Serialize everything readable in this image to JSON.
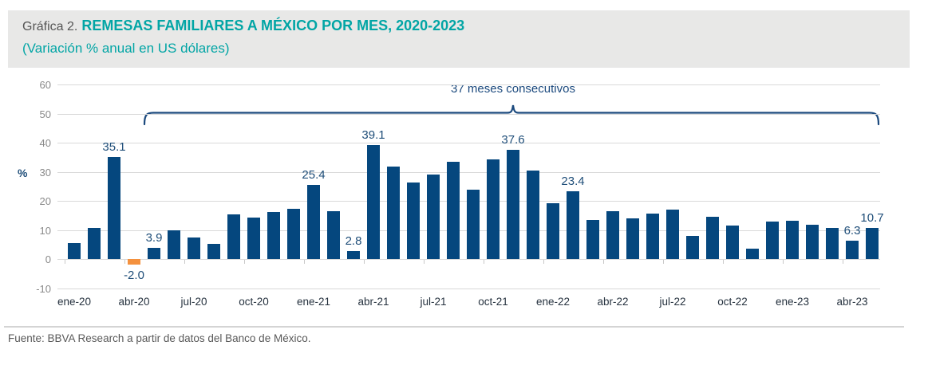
{
  "header": {
    "prefix": "Gráfica 2.",
    "title": "REMESAS FAMILIARES A MÉXICO POR MES, 2020-2023",
    "subtitle": "(Variación % anual en US dólares)"
  },
  "footer": {
    "source": "Fuente: BBVA Research a partir de datos del Banco de México."
  },
  "chart_data": {
    "type": "bar",
    "title": "REMESAS FAMILIARES A MÉXICO POR MES, 2020-2023",
    "subtitle": "(Variación % anual en US dólares)",
    "ylabel": "%",
    "ylim": [
      -10,
      60
    ],
    "yticks": [
      60,
      50,
      40,
      30,
      20,
      10,
      0,
      -10
    ],
    "grid": true,
    "legend": "none",
    "annotation": {
      "text": "37 meses consecutivos",
      "from": "may-20",
      "to": "may-23"
    },
    "categories": [
      "ene-20",
      "feb-20",
      "mar-20",
      "abr-20",
      "may-20",
      "jun-20",
      "jul-20",
      "ago-20",
      "sep-20",
      "oct-20",
      "nov-20",
      "dic-20",
      "ene-21",
      "feb-21",
      "mar-21",
      "abr-21",
      "may-21",
      "jun-21",
      "jul-21",
      "ago-21",
      "sep-21",
      "oct-21",
      "nov-21",
      "dic-21",
      "ene-22",
      "feb-22",
      "mar-22",
      "abr-22",
      "may-22",
      "jun-22",
      "jul-22",
      "ago-22",
      "sep-22",
      "oct-22",
      "nov-22",
      "dic-22",
      "ene-23",
      "feb-23",
      "mar-23",
      "abr-23",
      "may-23"
    ],
    "values": [
      5.5,
      10.8,
      35.1,
      -2.0,
      3.9,
      10.0,
      7.3,
      5.3,
      15.3,
      14.3,
      16.1,
      17.3,
      25.4,
      16.4,
      2.8,
      39.1,
      31.9,
      26.4,
      29.0,
      33.4,
      23.8,
      34.3,
      37.6,
      30.4,
      19.2,
      23.4,
      13.3,
      16.5,
      13.9,
      15.5,
      17.0,
      8.0,
      14.4,
      11.5,
      3.6,
      12.9,
      13.1,
      11.7,
      10.6,
      6.3,
      10.7
    ],
    "point_labels": {
      "2": "35.1",
      "3": "-2.0",
      "4": "3.9",
      "12": "25.4",
      "14": "2.8",
      "15": "39.1",
      "22": "37.6",
      "25": "23.4",
      "39": "6.3",
      "40": "10.7"
    },
    "x_tick_label_every": 3,
    "colors": {
      "bar": "#05477e",
      "negative_bar": "#f4913e",
      "point_label": "#1f4e79",
      "axis_text": "#8a8a8a",
      "x_label_text": "#26323f",
      "gridline": "#d9d9d9",
      "annotation": "#1c4a7e",
      "title_accent": "#02a5a5"
    }
  }
}
